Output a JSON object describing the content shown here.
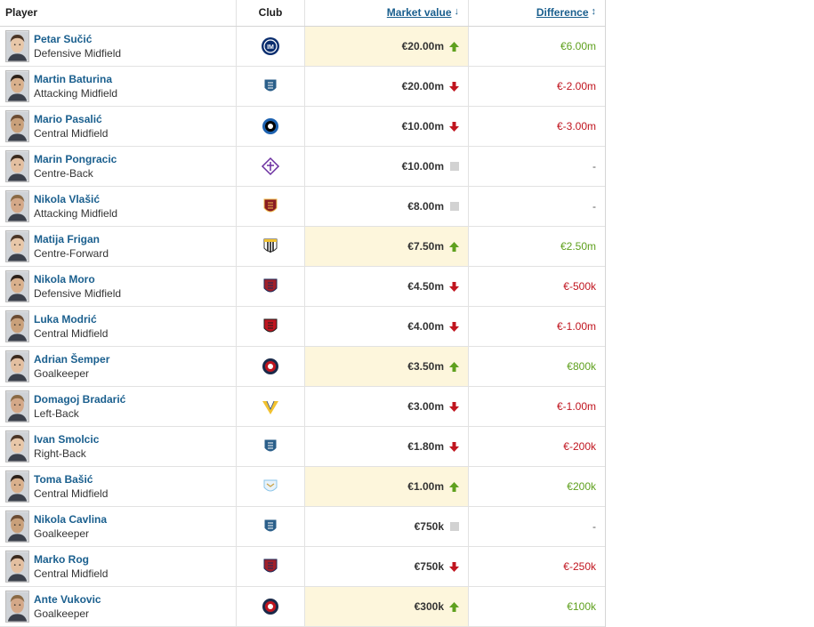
{
  "header": {
    "player": "Player",
    "club": "Club",
    "market_value": "Market value",
    "difference": "Difference"
  },
  "colors": {
    "link": "#1a5f8e",
    "positive": "#5fa01e",
    "negative": "#c0151f",
    "highlight": "#fdf6dc"
  },
  "rows": [
    {
      "name": "Petar Sučić",
      "position": "Defensive Midfield",
      "club_icon": "inter-crest-icon",
      "value": "€20.00m",
      "trend": "up",
      "diff": "€6.00m"
    },
    {
      "name": "Martin Baturina",
      "position": "Attacking Midfield",
      "club_icon": "como-crest-icon",
      "value": "€20.00m",
      "trend": "down",
      "diff": "€-2.00m"
    },
    {
      "name": "Mario Pasalić",
      "position": "Central Midfield",
      "club_icon": "atalanta-crest-icon",
      "value": "€10.00m",
      "trend": "down",
      "diff": "€-3.00m"
    },
    {
      "name": "Marin Pongracic",
      "position": "Centre-Back",
      "club_icon": "fiorentina-crest-icon",
      "value": "€10.00m",
      "trend": "none",
      "diff": "-"
    },
    {
      "name": "Nikola Vlašić",
      "position": "Attacking Midfield",
      "club_icon": "torino-crest-icon",
      "value": "€8.00m",
      "trend": "none",
      "diff": "-"
    },
    {
      "name": "Matija Frigan",
      "position": "Centre-Forward",
      "club_icon": "parma-crest-icon",
      "value": "€7.50m",
      "trend": "up",
      "diff": "€2.50m"
    },
    {
      "name": "Nikola Moro",
      "position": "Defensive Midfield",
      "club_icon": "bologna-crest-icon",
      "value": "€4.50m",
      "trend": "down",
      "diff": "€-500k"
    },
    {
      "name": "Luka Modrić",
      "position": "Central Midfield",
      "club_icon": "milan-crest-icon",
      "value": "€4.00m",
      "trend": "down",
      "diff": "€-1.00m"
    },
    {
      "name": "Adrian Šemper",
      "position": "Goalkeeper",
      "club_icon": "pisa-crest-icon",
      "value": "€3.50m",
      "trend": "up",
      "diff": "€800k"
    },
    {
      "name": "Domagoj Bradarić",
      "position": "Left-Back",
      "club_icon": "verona-crest-icon",
      "value": "€3.00m",
      "trend": "down",
      "diff": "€-1.00m"
    },
    {
      "name": "Ivan Smolcic",
      "position": "Right-Back",
      "club_icon": "como-crest-icon",
      "value": "€1.80m",
      "trend": "down",
      "diff": "€-200k"
    },
    {
      "name": "Toma Bašić",
      "position": "Central Midfield",
      "club_icon": "lazio-crest-icon",
      "value": "€1.00m",
      "trend": "up",
      "diff": "€200k"
    },
    {
      "name": "Nikola Cavlina",
      "position": "Goalkeeper",
      "club_icon": "como-crest-icon",
      "value": "€750k",
      "trend": "none",
      "diff": "-"
    },
    {
      "name": "Marko Rog",
      "position": "Central Midfield",
      "club_icon": "cagliari-crest-icon",
      "value": "€750k",
      "trend": "down",
      "diff": "€-250k"
    },
    {
      "name": "Ante Vukovic",
      "position": "Goalkeeper",
      "club_icon": "pisa-crest-icon",
      "value": "€300k",
      "trend": "up",
      "diff": "€100k"
    }
  ]
}
